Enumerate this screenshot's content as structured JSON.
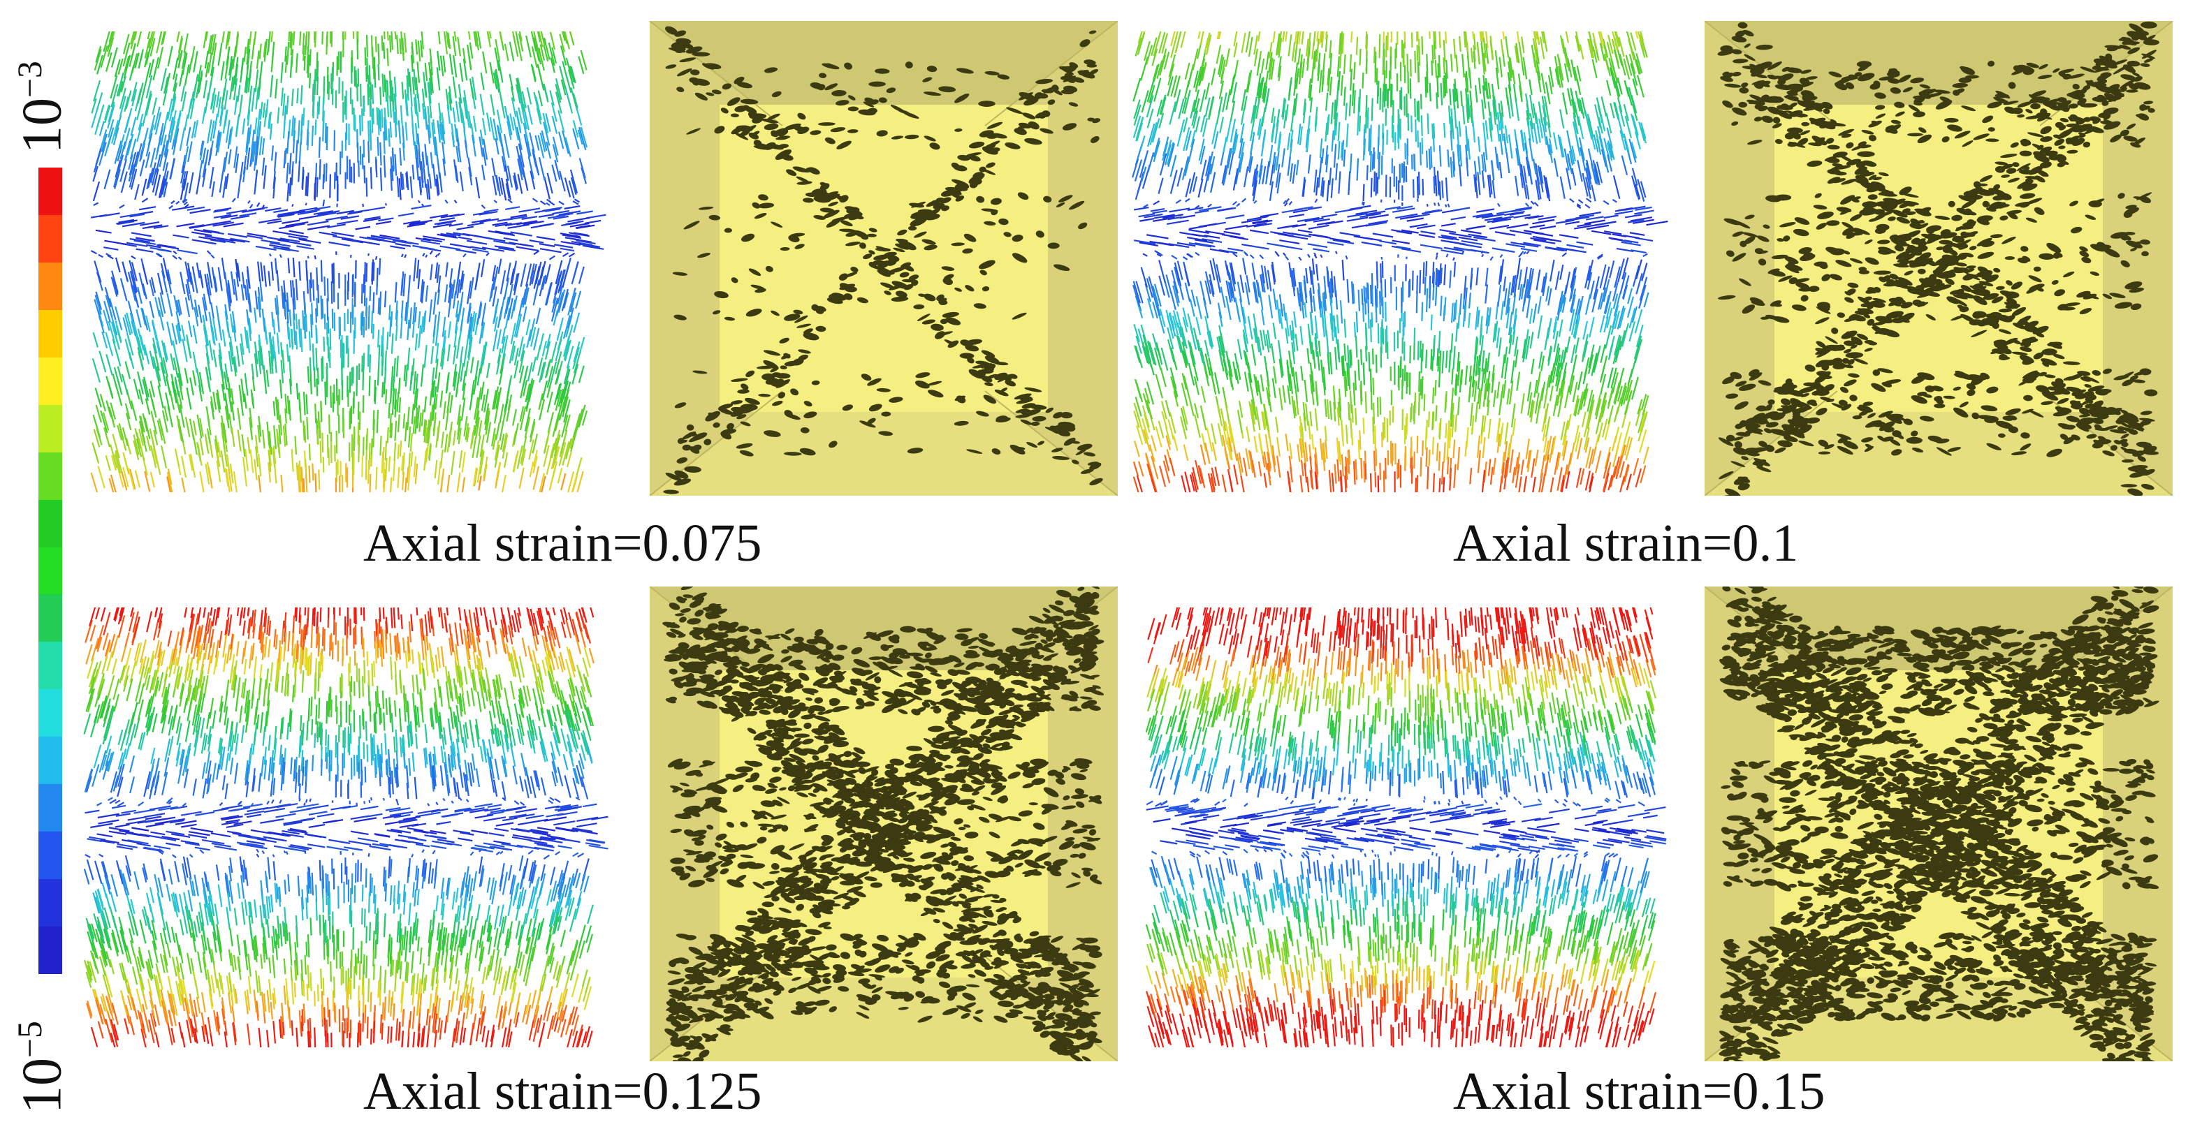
{
  "colorbar": {
    "max_label": "10",
    "max_exp": "−3",
    "min_label": "10",
    "min_exp": "−5",
    "colors": [
      "#ee1111",
      "#ff4411",
      "#ff8811",
      "#ffcc00",
      "#ffee22",
      "#bbee22",
      "#66dd22",
      "#22cc22",
      "#22dd22",
      "#22cc55",
      "#22ddaa",
      "#22dddd",
      "#22bbee",
      "#2288ee",
      "#2255ee",
      "#2233dd",
      "#2222cc"
    ]
  },
  "panels": [
    {
      "caption": "Axial strain=0.075",
      "strain": 0.075
    },
    {
      "caption": "Axial strain=0.1",
      "strain": 0.1
    },
    {
      "caption": "Axial strain=0.125",
      "strain": 0.125
    },
    {
      "caption": "Axial strain=0.15",
      "strain": 0.15
    }
  ],
  "crack_colors": {
    "face": "#f5ef82",
    "side": "#d9d27a",
    "edge": "#bdb661",
    "crack": "#3c3a10"
  }
}
